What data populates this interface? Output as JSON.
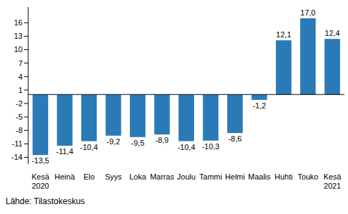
{
  "chart_data": {
    "type": "bar",
    "source": "Lähde: Tilastokeskus",
    "categories": [
      "Kesä\n2020",
      "Heinä",
      "Elo",
      "Syys",
      "Loka",
      "Marras",
      "Joulu",
      "Tammi",
      "Helmi",
      "Maalis",
      "Huhti",
      "Touko",
      "Kesä\n2021"
    ],
    "values": [
      -13.5,
      -11.4,
      -10.4,
      -9.2,
      -9.5,
      -8.9,
      -10.4,
      -10.3,
      -8.6,
      -1.2,
      12.1,
      17.0,
      12.4
    ],
    "value_labels": [
      "-13,5",
      "-11,4",
      "-10,4",
      "-9,2",
      "-9,5",
      "-8,9",
      "-10,4",
      "-10,3",
      "-8,6",
      "-1,2",
      "12,1",
      "17,0",
      "12,4"
    ],
    "color": "#2a7ab8",
    "ylim": [
      -15.5,
      19.5
    ],
    "yticks": [
      -14,
      -11,
      -8,
      -5,
      -2,
      1,
      4,
      7,
      10,
      13,
      16
    ],
    "grid": false,
    "data_labels": true
  }
}
